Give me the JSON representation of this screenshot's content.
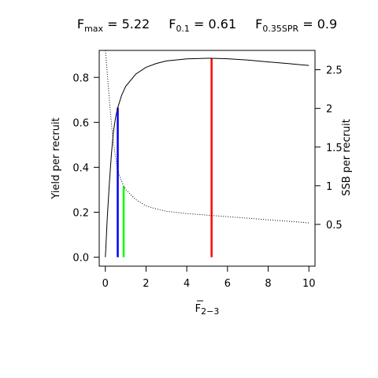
{
  "chart_data": {
    "type": "line",
    "title_parts": [
      {
        "main": "F",
        "sub": "max",
        "rest": " = 5.22"
      },
      {
        "main": "F",
        "sub": "0.1",
        "rest": " = 0.61"
      },
      {
        "main": "F",
        "sub": "0.35SPR",
        "rest": " = 0.9"
      }
    ],
    "xlabel": {
      "main": "F",
      "sub": "2−3"
    },
    "ylabel_left": "Yield per recruit",
    "ylabel_right": "SSB per recruit",
    "xlim": [
      -0.3,
      10.3
    ],
    "ylim_left": [
      -0.04,
      0.92
    ],
    "ylim_right": [
      -0.04,
      2.75
    ],
    "x_ticks": [
      0,
      2,
      4,
      6,
      8,
      10
    ],
    "y_ticks_left": [
      0.0,
      0.2,
      0.4,
      0.6,
      0.8
    ],
    "y_ticks_right": [
      0.5,
      1,
      1.5,
      2,
      2.5
    ],
    "x_tick_labels": [
      "0",
      "2",
      "4",
      "6",
      "8",
      "10"
    ],
    "y_tick_labels_left": [
      "0.0",
      "0.2",
      "0.4",
      "0.6",
      "0.8"
    ],
    "y_tick_labels_right": [
      "0.5",
      "1",
      "1.5",
      "2",
      "2.5"
    ],
    "series": [
      {
        "axis": "left",
        "style": "solid",
        "color": "#000000",
        "x": [
          0,
          0.1,
          0.2,
          0.3,
          0.4,
          0.5,
          0.61,
          0.8,
          1.0,
          1.5,
          2.0,
          2.5,
          3.0,
          4.0,
          5.0,
          5.22,
          6.0,
          7.0,
          8.0,
          9.0,
          10.0
        ],
        "y": [
          0.0,
          0.18,
          0.33,
          0.46,
          0.56,
          0.62,
          0.665,
          0.72,
          0.76,
          0.815,
          0.845,
          0.862,
          0.873,
          0.882,
          0.885,
          0.885,
          0.883,
          0.877,
          0.869,
          0.861,
          0.853
        ]
      },
      {
        "axis": "right",
        "style": "dotted",
        "color": "#000000",
        "x": [
          0,
          0.1,
          0.2,
          0.3,
          0.4,
          0.5,
          0.61,
          0.8,
          0.9,
          1.0,
          1.5,
          2.0,
          2.5,
          3.0,
          4.0,
          5.0,
          6.0,
          7.0,
          8.0,
          9.0,
          10.0
        ],
        "y": [
          2.75,
          2.45,
          2.1,
          1.8,
          1.55,
          1.38,
          1.2,
          1.06,
          1.0,
          0.95,
          0.82,
          0.74,
          0.7,
          0.67,
          0.64,
          0.62,
          0.6,
          0.58,
          0.56,
          0.54,
          0.52
        ]
      }
    ],
    "reference_lines": [
      {
        "name": "Fmax",
        "x": 5.22,
        "y": 0.885,
        "color": "#ff0000"
      },
      {
        "name": "F0.1",
        "x": 0.61,
        "y": 0.665,
        "color": "#0000ff"
      },
      {
        "name": "F0.35SPR",
        "x": 0.9,
        "y": 0.315,
        "color": "#00ff00"
      }
    ],
    "grid": false,
    "legend": "none"
  }
}
